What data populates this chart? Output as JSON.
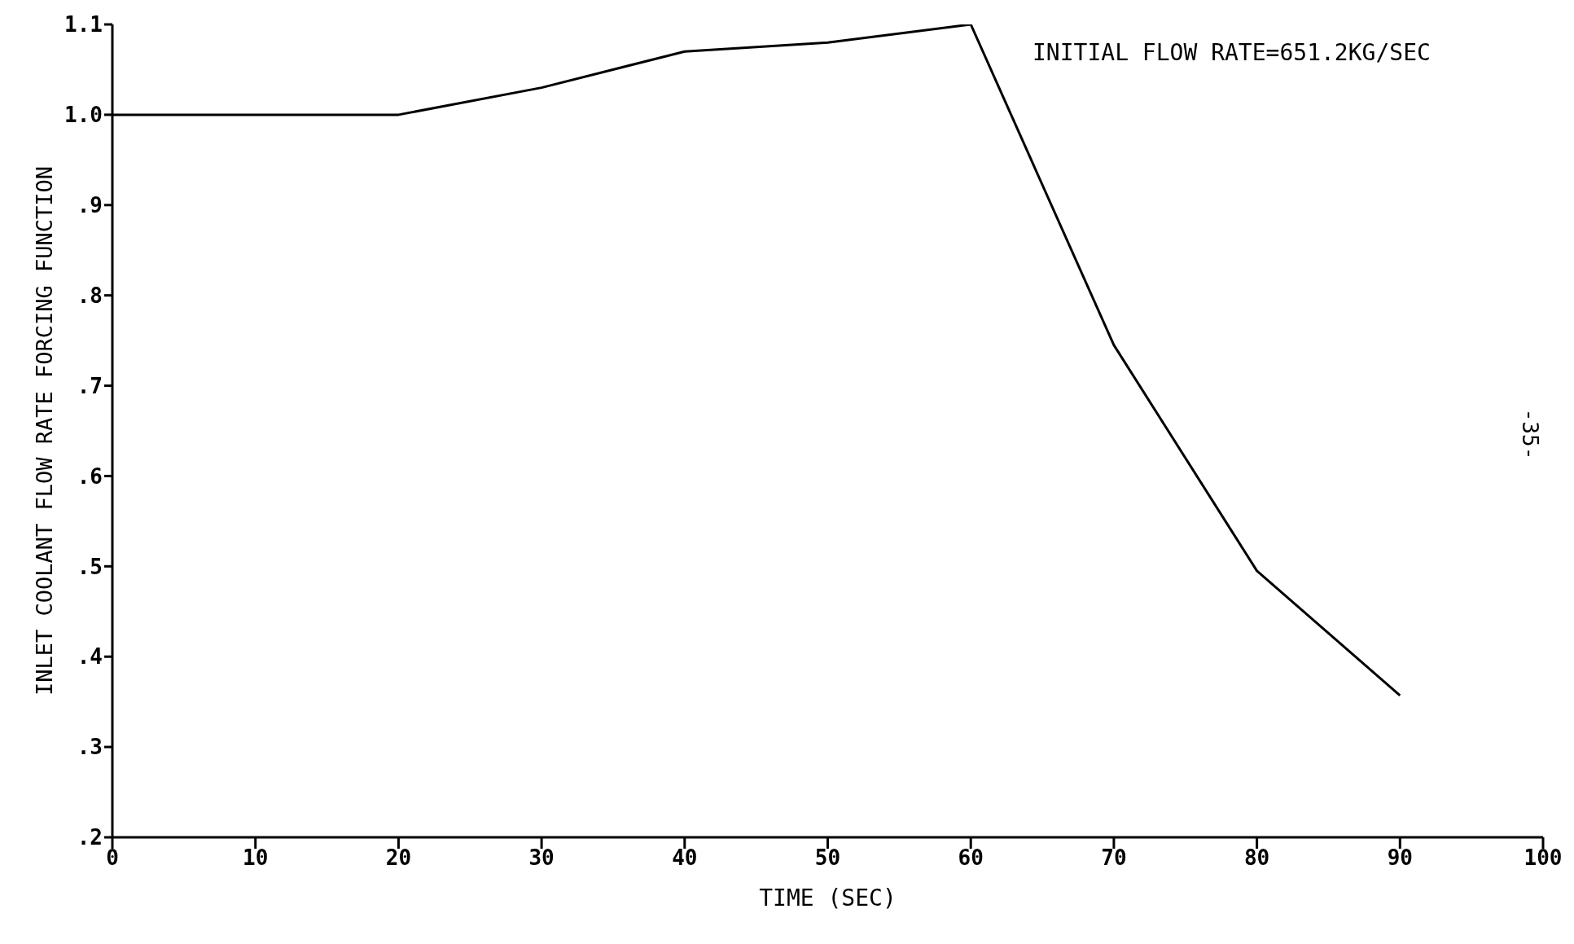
{
  "chart_data": {
    "type": "line",
    "xlabel": "TIME (SEC)",
    "ylabel": "INLET COOLANT FLOW RATE FORCING FUNCTION",
    "x": [
      0,
      10,
      20,
      30,
      40,
      50,
      60,
      70,
      80,
      90
    ],
    "series": [
      {
        "color": "#000000",
        "values": [
          1.0,
          1.0,
          1.0,
          1.03,
          1.07,
          1.08,
          1.1,
          0.745,
          0.495,
          0.357
        ]
      }
    ],
    "xlim": [
      0,
      100
    ],
    "xticks": [
      0,
      10,
      20,
      30,
      40,
      50,
      60,
      70,
      80,
      90,
      100
    ],
    "ylim": [
      0.2,
      1.1
    ],
    "yticks": [
      {
        "value": 0.2,
        "label": ".2"
      },
      {
        "value": 0.3,
        "label": ".3"
      },
      {
        "value": 0.4,
        "label": ".4"
      },
      {
        "value": 0.5,
        "label": ".5"
      },
      {
        "value": 0.6,
        "label": ".6"
      },
      {
        "value": 0.7,
        "label": ".7"
      },
      {
        "value": 0.8,
        "label": ".8"
      },
      {
        "value": 0.9,
        "label": ".9"
      },
      {
        "value": 1.0,
        "label": "1.0"
      },
      {
        "value": 1.1,
        "label": "1.1"
      }
    ],
    "annotations": [
      "INITIAL FLOW RATE=651.2KG/SEC",
      "-35-"
    ],
    "grid": false,
    "legend": false,
    "marker": "none",
    "line_style": "solid"
  }
}
